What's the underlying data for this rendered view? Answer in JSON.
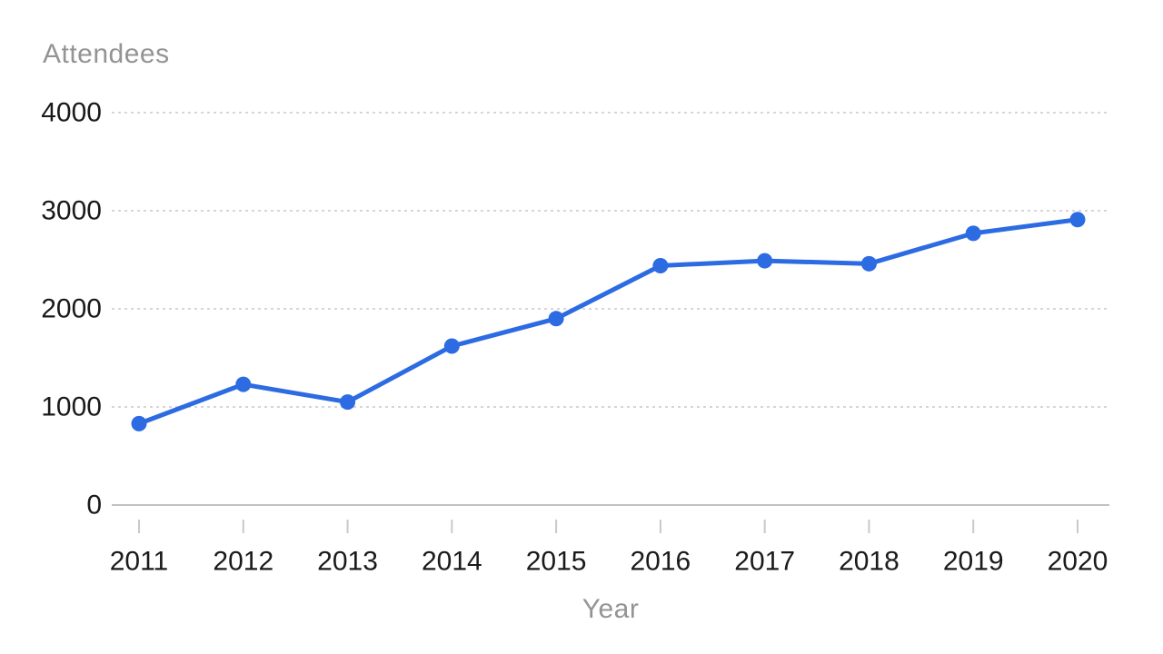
{
  "chart_data": {
    "type": "line",
    "title": "",
    "ylabel": "Attendees",
    "xlabel": "Year",
    "categories": [
      "2011",
      "2012",
      "2013",
      "2014",
      "2015",
      "2016",
      "2017",
      "2018",
      "2019",
      "2020"
    ],
    "series": [
      {
        "name": "Attendees",
        "values": [
          830,
          1230,
          1050,
          1620,
          1900,
          2440,
          2490,
          2460,
          2770,
          2910
        ],
        "color": "#2c6be2"
      }
    ],
    "yticks": [
      0,
      1000,
      2000,
      3000,
      4000
    ],
    "ytick_labels": [
      "0",
      "1000",
      "2000",
      "3000",
      "4000"
    ],
    "ylim": [
      0,
      4000
    ],
    "grid": "horizontal-dashed",
    "legend": "none",
    "marker": "filled-circle",
    "colors": {
      "line": "#2c6be2",
      "marker": "#2c6be2",
      "gridline": "#c9c9c9",
      "axis_line": "#c2c2c2",
      "tick_mark": "#c9c9c9",
      "tick_label": "#1a1a1a",
      "axis_title": "#949494",
      "background": "#ffffff"
    }
  }
}
